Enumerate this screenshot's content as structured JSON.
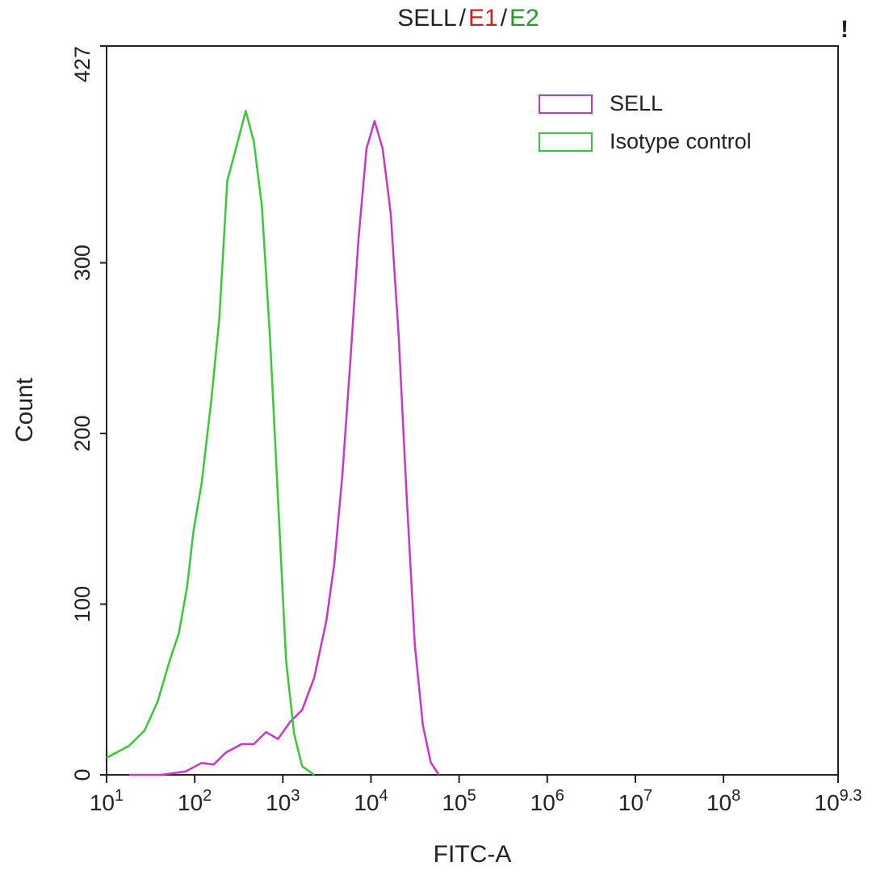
{
  "chart_data": {
    "type": "line",
    "title_parts": [
      {
        "text": "SELL",
        "color": "#222222"
      },
      {
        "text": "/",
        "color": "#222222"
      },
      {
        "text": "E1",
        "color": "#cc2222"
      },
      {
        "text": "/",
        "color": "#222222"
      },
      {
        "text": "E2",
        "color": "#229922"
      }
    ],
    "corner_mark": "!",
    "x_label": "FITC-A",
    "y_label": "Count",
    "log_x": true,
    "xlim": [
      10,
      1995262315
    ],
    "xticks": [
      {
        "value": 10,
        "label": "10",
        "sup": "1"
      },
      {
        "value": 100,
        "label": "10",
        "sup": "2"
      },
      {
        "value": 1000,
        "label": "10",
        "sup": "3"
      },
      {
        "value": 10000,
        "label": "10",
        "sup": "4"
      },
      {
        "value": 100000,
        "label": "10",
        "sup": "5"
      },
      {
        "value": 1000000,
        "label": "10",
        "sup": "6"
      },
      {
        "value": 10000000,
        "label": "10",
        "sup": "7"
      },
      {
        "value": 100000000,
        "label": "10",
        "sup": "8"
      },
      {
        "value": 1995262315,
        "label": "10",
        "sup": "9.3"
      }
    ],
    "ylim": [
      0,
      427
    ],
    "yticks": [
      0,
      100,
      200,
      300,
      427
    ],
    "legend": "top-right",
    "series": [
      {
        "name": "SELL",
        "color": "#cc33cc",
        "x": [
          18,
          42,
          79,
          120,
          164,
          225,
          342,
          469,
          643,
          881,
          1208,
          1656,
          2270,
          3112,
          3838,
          4742,
          5848,
          7211,
          8913,
          10990,
          13550,
          16750,
          20650,
          25470,
          31480,
          38810,
          47860,
          59160
        ],
        "values": [
          0,
          0,
          2,
          7,
          6,
          13,
          18,
          18,
          25,
          21,
          31,
          38,
          57,
          90,
          124,
          176,
          243,
          314,
          367,
          383,
          367,
          329,
          257,
          162,
          76,
          29,
          7,
          0
        ]
      },
      {
        "name": "Isotype control",
        "color": "#33cc33",
        "x": [
          10,
          18,
          27,
          38,
          52,
          66,
          82,
          97,
          120,
          154,
          190,
          234,
          308,
          380,
          469,
          579,
          714,
          881,
          1088,
          1342,
          1656,
          2270
        ],
        "values": [
          10,
          17,
          26,
          43,
          67,
          83,
          110,
          143,
          171,
          219,
          267,
          348,
          371,
          389,
          371,
          333,
          257,
          162,
          67,
          24,
          5,
          0
        ]
      }
    ]
  }
}
